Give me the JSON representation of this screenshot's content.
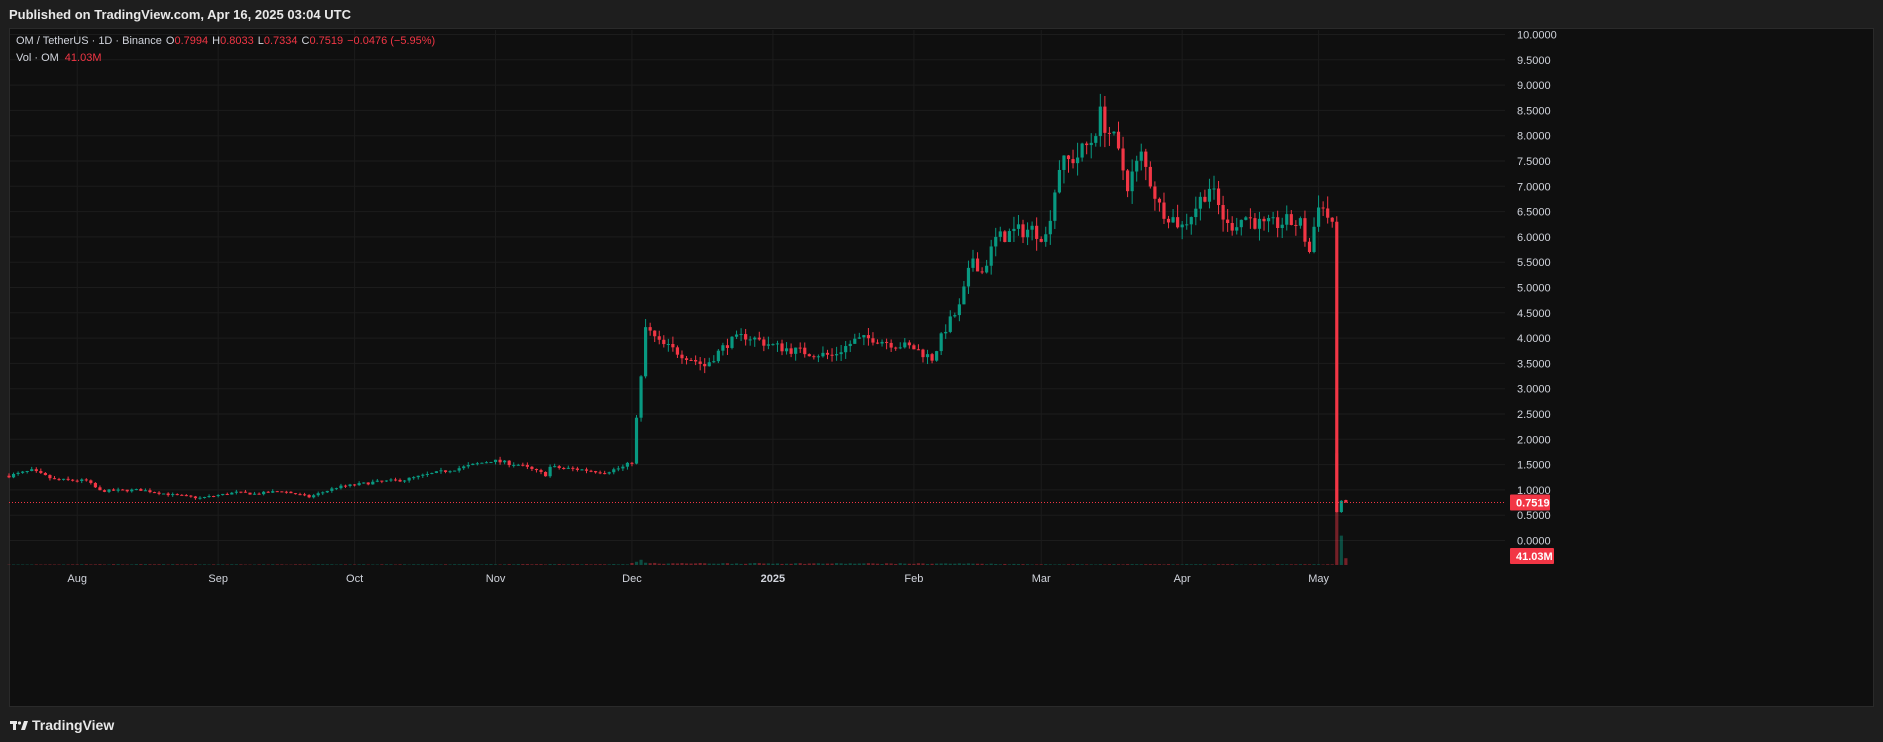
{
  "header": {
    "published": "Published on TradingView.com, Apr 16, 2025 03:04 UTC"
  },
  "legend": {
    "symbol": "OM / TetherUS · 1D · Binance",
    "o_label": "O",
    "o_value": "0.7994",
    "h_label": "H",
    "h_value": "0.8033",
    "l_label": "L",
    "l_value": "0.7334",
    "c_label": "C",
    "c_value": "0.7519",
    "change": "−0.0476 (−5.95%)",
    "vol_label": "Vol · OM",
    "vol_value": "41.03M"
  },
  "footer": {
    "brand": "TradingView"
  },
  "colors": {
    "up": "#089981",
    "down": "#f23645",
    "background": "#0f0f0f",
    "grid": "#1e1e1e",
    "last_price": "#f23645"
  },
  "icons": {
    "brand": "tradingview-logo-icon"
  },
  "chart_data": {
    "type": "candlestick",
    "title": "OM / TetherUS · 1D · Binance",
    "y_axis": {
      "min": 0,
      "max": 10,
      "ticks": [
        "0.0000",
        "0.5000",
        "1.0000",
        "1.5000",
        "2.0000",
        "2.5000",
        "3.0000",
        "3.5000",
        "4.0000",
        "4.5000",
        "5.0000",
        "5.5000",
        "6.0000",
        "6.5000",
        "7.0000",
        "7.5000",
        "8.0000",
        "8.5000",
        "9.0000",
        "9.5000",
        "10.0000"
      ]
    },
    "x_axis": {
      "labels": [
        "Aug",
        "Sep",
        "Oct",
        "Nov",
        "Dec",
        "2025",
        "Feb",
        "Mar",
        "Apr",
        "May"
      ],
      "start_date": "2024-07-17",
      "end_date": "2025-05-31",
      "label_dates": [
        "2024-08-01",
        "2024-09-01",
        "2024-10-01",
        "2024-11-01",
        "2024-12-01",
        "2025-01-01",
        "2025-02-01",
        "2025-03-01",
        "2025-04-01",
        "2025-05-01"
      ]
    },
    "last_price": {
      "value": 0.7519,
      "label": "0.7519"
    },
    "last_volume": {
      "label": "41.03M"
    },
    "grid": true,
    "close_keyframes": [
      [
        "2024-07-17",
        1.28
      ],
      [
        "2024-07-22",
        1.38
      ],
      [
        "2024-07-27",
        1.2
      ],
      [
        "2024-08-03",
        1.18
      ],
      [
        "2024-08-06",
        0.98
      ],
      [
        "2024-08-15",
        1.0
      ],
      [
        "2024-08-22",
        0.9
      ],
      [
        "2024-08-28",
        0.84
      ],
      [
        "2024-09-05",
        0.95
      ],
      [
        "2024-09-09",
        0.92
      ],
      [
        "2024-09-15",
        0.98
      ],
      [
        "2024-09-21",
        0.86
      ],
      [
        "2024-09-27",
        1.05
      ],
      [
        "2024-10-05",
        1.15
      ],
      [
        "2024-10-12",
        1.2
      ],
      [
        "2024-10-18",
        1.32
      ],
      [
        "2024-10-25",
        1.45
      ],
      [
        "2024-10-31",
        1.58
      ],
      [
        "2024-11-06",
        1.5
      ],
      [
        "2024-11-12",
        1.3
      ],
      [
        "2024-11-13",
        1.45
      ],
      [
        "2024-11-20",
        1.4
      ],
      [
        "2024-11-25",
        1.35
      ],
      [
        "2024-11-29",
        1.45
      ],
      [
        "2024-12-01",
        1.55
      ],
      [
        "2024-12-02",
        2.4
      ],
      [
        "2024-12-03",
        3.2
      ],
      [
        "2024-12-04",
        4.2
      ],
      [
        "2024-12-07",
        3.9
      ],
      [
        "2024-12-14",
        3.6
      ],
      [
        "2024-12-17",
        3.45
      ],
      [
        "2024-12-22",
        3.9
      ],
      [
        "2024-12-26",
        4.05
      ],
      [
        "2025-01-01",
        3.85
      ],
      [
        "2025-01-06",
        3.75
      ],
      [
        "2025-01-14",
        3.65
      ],
      [
        "2025-01-19",
        3.95
      ],
      [
        "2025-01-23",
        4.0
      ],
      [
        "2025-01-27",
        3.9
      ],
      [
        "2025-02-01",
        3.8
      ],
      [
        "2025-02-05",
        3.6
      ],
      [
        "2025-02-08",
        4.2
      ],
      [
        "2025-02-11",
        4.6
      ],
      [
        "2025-02-14",
        5.6
      ],
      [
        "2025-02-16",
        5.3
      ],
      [
        "2025-02-19",
        5.95
      ],
      [
        "2025-02-23",
        6.1
      ],
      [
        "2025-02-27",
        6.15
      ],
      [
        "2025-03-02",
        6.0
      ],
      [
        "2025-03-05",
        7.4
      ],
      [
        "2025-03-09",
        7.6
      ],
      [
        "2025-03-12",
        7.9
      ],
      [
        "2025-03-14",
        8.4
      ],
      [
        "2025-03-17",
        7.9
      ],
      [
        "2025-03-20",
        7.05
      ],
      [
        "2025-03-23",
        7.6
      ],
      [
        "2025-03-27",
        6.6
      ],
      [
        "2025-04-01",
        6.2
      ],
      [
        "2025-04-04",
        6.6
      ],
      [
        "2025-04-07",
        7.0
      ],
      [
        "2025-04-11",
        6.2
      ],
      [
        "2025-04-15",
        6.4
      ],
      [
        "2025-04-19",
        6.2
      ],
      [
        "2025-04-24",
        6.3
      ],
      [
        "2025-04-27",
        6.25
      ],
      [
        "2025-04-29",
        5.7
      ],
      [
        "2025-05-01",
        6.7
      ],
      [
        "2025-05-03",
        6.4
      ],
      [
        "2025-05-04",
        6.3
      ],
      [
        "2025-05-05",
        0.55
      ],
      [
        "2025-05-06",
        0.8
      ],
      [
        "2025-05-07",
        0.7519
      ]
    ],
    "volume_keyframes": [
      [
        "2024-07-17",
        0.03
      ],
      [
        "2024-08-03",
        0.05
      ],
      [
        "2024-09-20",
        0.04
      ],
      [
        "2024-11-30",
        0.06
      ],
      [
        "2024-12-01",
        0.12
      ],
      [
        "2024-12-03",
        0.35
      ],
      [
        "2024-12-05",
        0.12
      ],
      [
        "2025-02-12",
        0.1
      ],
      [
        "2025-03-01",
        0.05
      ],
      [
        "2025-05-04",
        0.05
      ],
      [
        "2025-05-05",
        10.0
      ],
      [
        "2025-05-06",
        2.5
      ],
      [
        "2025-05-07",
        0.41
      ]
    ]
  }
}
